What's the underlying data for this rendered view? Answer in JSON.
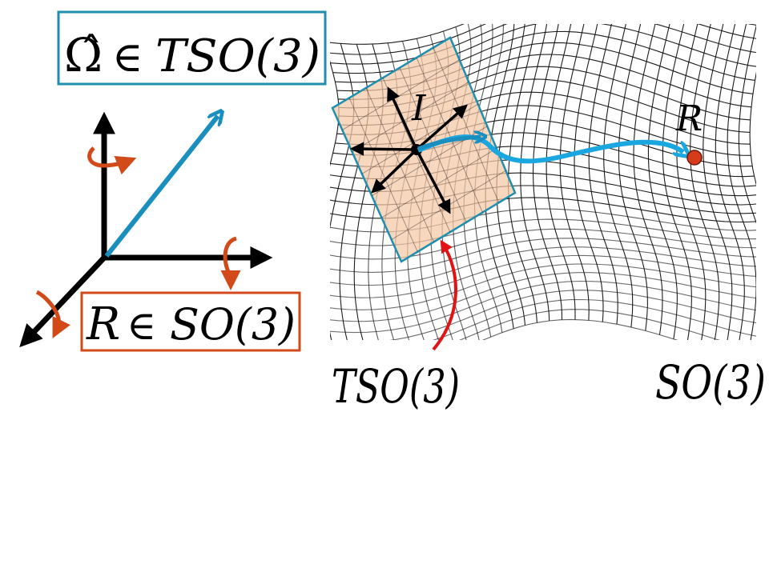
{
  "omega_box": {
    "symbol": "Ω̂",
    "relation": "∈",
    "space": "TSO(3)",
    "border_color": "#1f8fb0"
  },
  "rotation_box": {
    "symbol": "R",
    "relation": "∈",
    "space": "SO(3)",
    "border_color": "#d24a1a"
  },
  "manifold_labels": {
    "tangent_space": "TSO(3)",
    "group": "SO(3)",
    "identity": "I",
    "point": "R"
  },
  "colors": {
    "axis": "#000000",
    "omega_arrow": "#1a8fbf",
    "rotation_arrows": "#d24a1a",
    "tangent_plane_fill": "#f5c7a6",
    "tangent_plane_border": "#1f8fb0",
    "geodesic": "#1aa7e0",
    "point_R": "#d63c1c",
    "pointer": "#e01414"
  }
}
